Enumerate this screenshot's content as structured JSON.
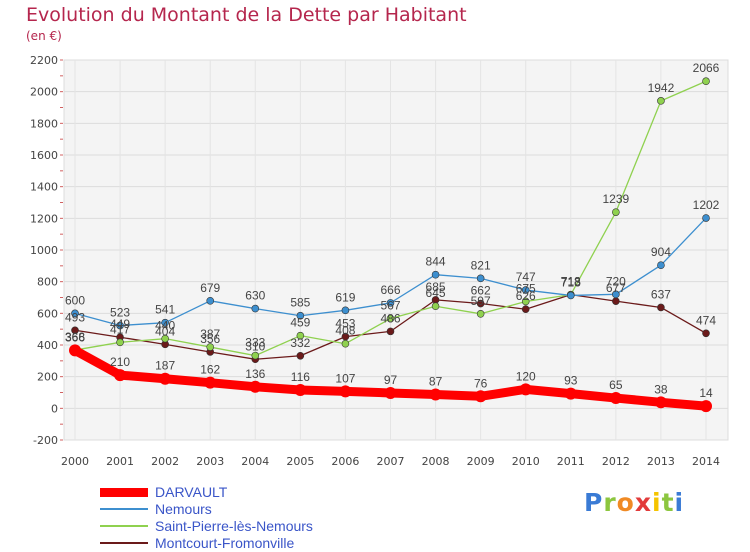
{
  "title": "Evolution du Montant de la Dette par Habitant",
  "subtitle": "(en €)",
  "logo_text": "Proxiti",
  "chart_data": {
    "type": "line",
    "title": "Evolution du Montant de la Dette par Habitant",
    "subtitle": "(en €)",
    "xlabel": "",
    "ylabel": "",
    "categories": [
      "2000",
      "2001",
      "2002",
      "2003",
      "2004",
      "2005",
      "2006",
      "2007",
      "2008",
      "2009",
      "2010",
      "2011",
      "2012",
      "2013",
      "2014"
    ],
    "ylim": [
      -200,
      2200
    ],
    "yticks": [
      -200,
      0,
      200,
      400,
      600,
      800,
      1000,
      1200,
      1400,
      1600,
      1800,
      2000,
      2200
    ],
    "grid": true,
    "legend_position": "bottom-left",
    "series": [
      {
        "name": "DARVAULT",
        "color": "#ff0000",
        "values": [
          366,
          210,
          187,
          162,
          136,
          116,
          107,
          97,
          87,
          76,
          120,
          93,
          65,
          38,
          14
        ]
      },
      {
        "name": "Nemours",
        "color": "#3d8fcf",
        "values": [
          600,
          523,
          541,
          679,
          630,
          585,
          619,
          666,
          844,
          821,
          747,
          713,
          720,
          904,
          1202
        ]
      },
      {
        "name": "Saint-Pierre-lès-Nemours",
        "color": "#8fd14f",
        "values": [
          368,
          417,
          440,
          387,
          333,
          459,
          408,
          567,
          645,
          597,
          675,
          718,
          1239,
          1942,
          2066
        ]
      },
      {
        "name": "Montcourt-Fromonville",
        "color": "#6b1a1a",
        "values": [
          493,
          449,
          404,
          356,
          310,
          332,
          453,
          486,
          685,
          662,
          626,
          718,
          677,
          637,
          474
        ]
      }
    ],
    "label_strings": [
      [
        "366",
        "210",
        "187",
        "162",
        "136",
        "116",
        "107",
        "97",
        "87",
        "76",
        "120",
        "93",
        "65",
        "38",
        "14"
      ],
      [
        "600",
        "523",
        "541",
        "679",
        "630",
        "585",
        "619",
        "666",
        "844",
        "821",
        "747",
        "713",
        "720",
        "904",
        "1202"
      ],
      [
        "368",
        "417",
        "440",
        "387",
        "333",
        "459",
        "408",
        "567",
        "645",
        "597",
        "675",
        "718",
        "1239",
        "1942",
        "2066"
      ],
      [
        "493",
        "449",
        "404",
        "356",
        "310",
        "332",
        "453",
        "486",
        "685",
        "662",
        "626",
        "718",
        "677",
        "637",
        "474"
      ]
    ]
  }
}
